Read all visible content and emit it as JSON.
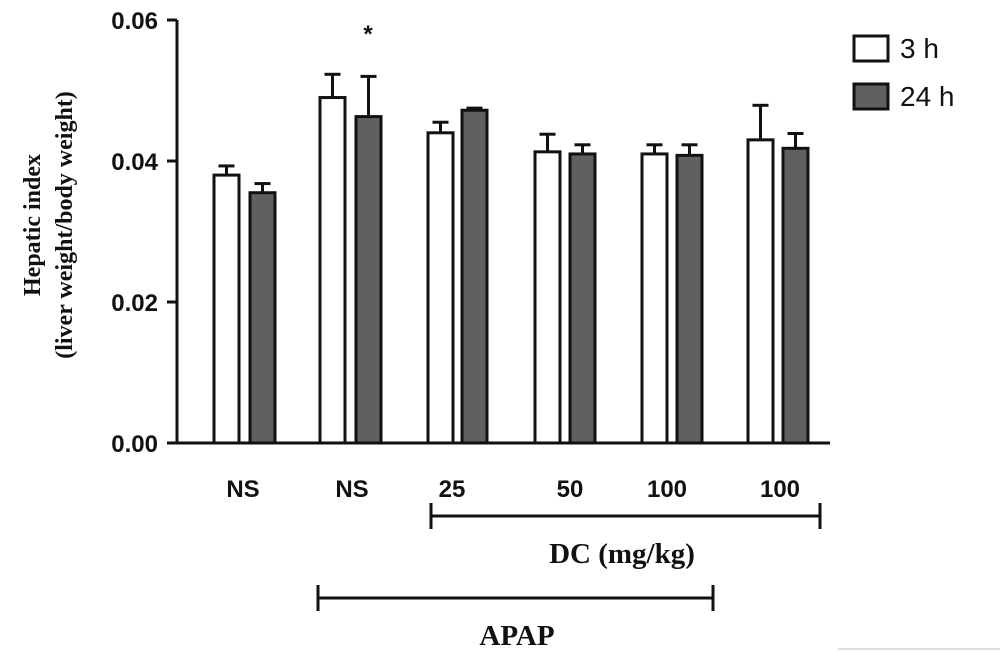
{
  "chart_data": {
    "type": "bar",
    "ylabel_line1": "Hepatic index",
    "ylabel_line2": "(liver weight/body weight)",
    "ylim": [
      0,
      0.06
    ],
    "yticks": [
      "0.00",
      "0.02",
      "0.04",
      "0.06"
    ],
    "categories": [
      "NS",
      "NS",
      "25",
      "50",
      "100",
      "100"
    ],
    "series": [
      {
        "name": "3 h",
        "color": "#ffffff",
        "values": [
          0.038,
          0.049,
          0.044,
          0.0413,
          0.041,
          0.043
        ],
        "errors": [
          0.0013,
          0.0033,
          0.0015,
          0.0025,
          0.0013,
          0.0049
        ]
      },
      {
        "name": "24 h",
        "color": "#606060",
        "values": [
          0.0355,
          0.0463,
          0.0472,
          0.041,
          0.0408,
          0.0418
        ],
        "errors": [
          0.0013,
          0.0057,
          0.0003,
          0.0013,
          0.0015,
          0.0021
        ]
      }
    ],
    "annotations": [
      {
        "text": "*",
        "category_index": 1
      }
    ],
    "group_brackets": [
      {
        "label": "DC (mg/kg)",
        "from_category": 2,
        "to_category": 5
      },
      {
        "label": "APAP",
        "from_category": 1,
        "to_category": 4
      }
    ],
    "legend_position": "top-right",
    "grid": false
  }
}
